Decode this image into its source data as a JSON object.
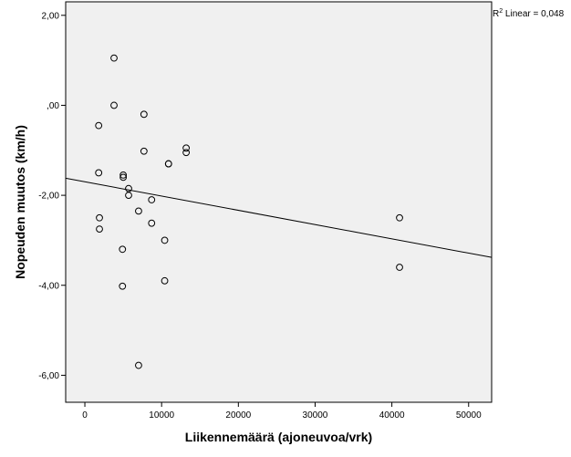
{
  "chart_data": {
    "type": "scatter",
    "title": "",
    "xlabel": "Liikennemäärä (ajoneuvoa/vrk)",
    "ylabel": "Nopeuden muutos (km/h)",
    "xlim": [
      -2500,
      53000
    ],
    "ylim": [
      -6.6,
      2.3
    ],
    "x_ticks": [
      0,
      10000,
      20000,
      30000,
      40000,
      50000
    ],
    "x_tick_labels": [
      "0",
      "10000",
      "20000",
      "30000",
      "40000",
      "50000"
    ],
    "y_ticks": [
      2,
      0,
      -2,
      -4,
      -6
    ],
    "y_tick_labels": [
      "2,00",
      ",00",
      "-2,00",
      "-4,00",
      "-6,00"
    ],
    "grid": false,
    "background": "#f0f0f0",
    "points": [
      {
        "x": 3800,
        "y": 1.05
      },
      {
        "x": 3800,
        "y": 0.0
      },
      {
        "x": 1800,
        "y": -0.45
      },
      {
        "x": 1800,
        "y": -1.5
      },
      {
        "x": 7700,
        "y": -0.2
      },
      {
        "x": 7700,
        "y": -1.02
      },
      {
        "x": 13200,
        "y": -0.95
      },
      {
        "x": 13200,
        "y": -1.05
      },
      {
        "x": 10900,
        "y": -1.3
      },
      {
        "x": 10900,
        "y": -1.3
      },
      {
        "x": 5000,
        "y": -1.55
      },
      {
        "x": 5000,
        "y": -1.6
      },
      {
        "x": 5700,
        "y": -1.85
      },
      {
        "x": 5700,
        "y": -2.0
      },
      {
        "x": 8700,
        "y": -2.1
      },
      {
        "x": 7000,
        "y": -2.35
      },
      {
        "x": 1900,
        "y": -2.5
      },
      {
        "x": 1900,
        "y": -2.75
      },
      {
        "x": 8700,
        "y": -2.62
      },
      {
        "x": 10400,
        "y": -3.0
      },
      {
        "x": 4900,
        "y": -3.2
      },
      {
        "x": 4900,
        "y": -4.02
      },
      {
        "x": 10400,
        "y": -3.9
      },
      {
        "x": 7000,
        "y": -5.78
      },
      {
        "x": 41000,
        "y": -2.5
      },
      {
        "x": 41000,
        "y": -3.6
      }
    ],
    "fit_line": {
      "label_prefix": "R",
      "label_superscript": "2",
      "label_suffix": " Linear = 0,048",
      "x": [
        -2500,
        53000
      ],
      "y": [
        -1.62,
        -3.38
      ]
    }
  }
}
